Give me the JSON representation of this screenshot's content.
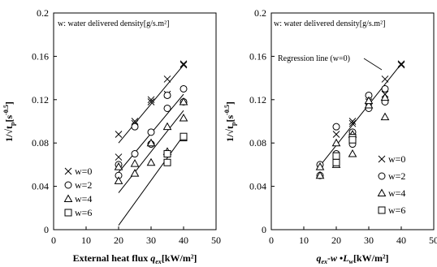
{
  "chart_data": [
    {
      "type": "scatter",
      "note": "w: water delivered density[g/s.m²]",
      "xlabel": "External heat flux q_ex[kW/m²]",
      "xlabel_parts": {
        "lead": "External heat flux ",
        "symbol": "q",
        "sub": "ex",
        "unit": "[kW/m²]"
      },
      "ylabel": "1/√t_p[s^-0.5]",
      "xlim": [
        0,
        50
      ],
      "ylim": [
        0,
        0.2
      ],
      "xticks": [
        "0",
        "10",
        "20",
        "30",
        "40",
        "50"
      ],
      "yticks": [
        "0",
        "0.04",
        "0.08",
        "0.12",
        "0.16",
        "0.2"
      ],
      "legend_position": "bottom-left",
      "series": [
        {
          "name": "w=0",
          "marker": "cross",
          "points": [
            [
              20,
              0.088
            ],
            [
              20,
              0.067
            ],
            [
              25,
              0.098
            ],
            [
              25,
              0.1
            ],
            [
              30,
              0.118
            ],
            [
              30,
              0.12
            ],
            [
              35,
              0.125
            ],
            [
              35,
              0.139
            ],
            [
              40,
              0.152
            ],
            [
              40,
              0.153
            ]
          ],
          "fit": [
            [
              20,
              0.08
            ],
            [
              40,
              0.152
            ]
          ]
        },
        {
          "name": "w=2",
          "marker": "circle",
          "points": [
            [
              20,
              0.06
            ],
            [
              20,
              0.05
            ],
            [
              25,
              0.07
            ],
            [
              25,
              0.095
            ],
            [
              30,
              0.09
            ],
            [
              30,
              0.079
            ],
            [
              35,
              0.112
            ],
            [
              35,
              0.124
            ],
            [
              40,
              0.13
            ],
            [
              40,
              0.118
            ]
          ],
          "fit": [
            [
              20,
              0.053
            ],
            [
              40,
              0.125
            ]
          ]
        },
        {
          "name": "w=4",
          "marker": "triangle",
          "points": [
            [
              20,
              0.058
            ],
            [
              20,
              0.045
            ],
            [
              25,
              0.052
            ],
            [
              25,
              0.061
            ],
            [
              30,
              0.062
            ],
            [
              30,
              0.08
            ],
            [
              35,
              0.072
            ],
            [
              35,
              0.095
            ],
            [
              40,
              0.103
            ],
            [
              40,
              0.118
            ]
          ],
          "fit": [
            [
              20,
              0.034
            ],
            [
              40,
              0.11
            ]
          ]
        },
        {
          "name": "w=6",
          "marker": "square",
          "points": [
            [
              35,
              0.07
            ],
            [
              35,
              0.062
            ],
            [
              40,
              0.085
            ],
            [
              40,
              0.086
            ]
          ],
          "fit": [
            [
              20,
              0.004
            ],
            [
              40,
              0.087
            ]
          ]
        }
      ]
    },
    {
      "type": "scatter",
      "note": "w: water delivered density[g/s.m²]",
      "annotation": "Regression line (w=0)",
      "xlabel": "q_ex-w •L_w[kW/m²]",
      "xlabel_parts": {
        "q": "q",
        "qsub": "ex",
        "mid": "-",
        "w": "w",
        "dot": " •",
        "L": "L",
        "Lsub": "w",
        "unit": "[kW/m²]"
      },
      "ylabel": "1/√t_p[s^-0.5]",
      "xlim": [
        0,
        50
      ],
      "ylim": [
        0,
        0.2
      ],
      "xticks": [
        "0",
        "10",
        "20",
        "30",
        "40",
        "50"
      ],
      "yticks": [
        "0",
        "0.04",
        "0.08",
        "0.12",
        "0.16",
        "0.2"
      ],
      "legend_position": "bottom-right",
      "regression": [
        [
          15,
          0.059
        ],
        [
          40,
          0.153
        ]
      ],
      "series": [
        {
          "name": "w=0",
          "marker": "cross",
          "points": [
            [
              20,
              0.088
            ],
            [
              20,
              0.067
            ],
            [
              25,
              0.098
            ],
            [
              25,
              0.1
            ],
            [
              30,
              0.118
            ],
            [
              30,
              0.12
            ],
            [
              35,
              0.125
            ],
            [
              35,
              0.139
            ],
            [
              40,
              0.152
            ],
            [
              40,
              0.153
            ]
          ]
        },
        {
          "name": "w=2",
          "marker": "circle",
          "points": [
            [
              15,
              0.06
            ],
            [
              15,
              0.05
            ],
            [
              20,
              0.07
            ],
            [
              20,
              0.095
            ],
            [
              25,
              0.09
            ],
            [
              25,
              0.079
            ],
            [
              30,
              0.112
            ],
            [
              30,
              0.124
            ],
            [
              35,
              0.13
            ],
            [
              35,
              0.118
            ]
          ]
        },
        {
          "name": "w=4",
          "marker": "triangle",
          "points": [
            [
              15,
              0.058
            ],
            [
              15,
              0.05
            ],
            [
              20,
              0.06
            ],
            [
              20,
              0.08
            ],
            [
              25,
              0.07
            ],
            [
              25,
              0.088
            ],
            [
              30,
              0.115
            ],
            [
              30,
              0.119
            ],
            [
              35,
              0.104
            ],
            [
              35,
              0.122
            ]
          ]
        },
        {
          "name": "w=6",
          "marker": "square",
          "points": [
            [
              20,
              0.062
            ],
            [
              20,
              0.068
            ],
            [
              25,
              0.085
            ],
            [
              25,
              0.083
            ]
          ]
        }
      ]
    }
  ]
}
